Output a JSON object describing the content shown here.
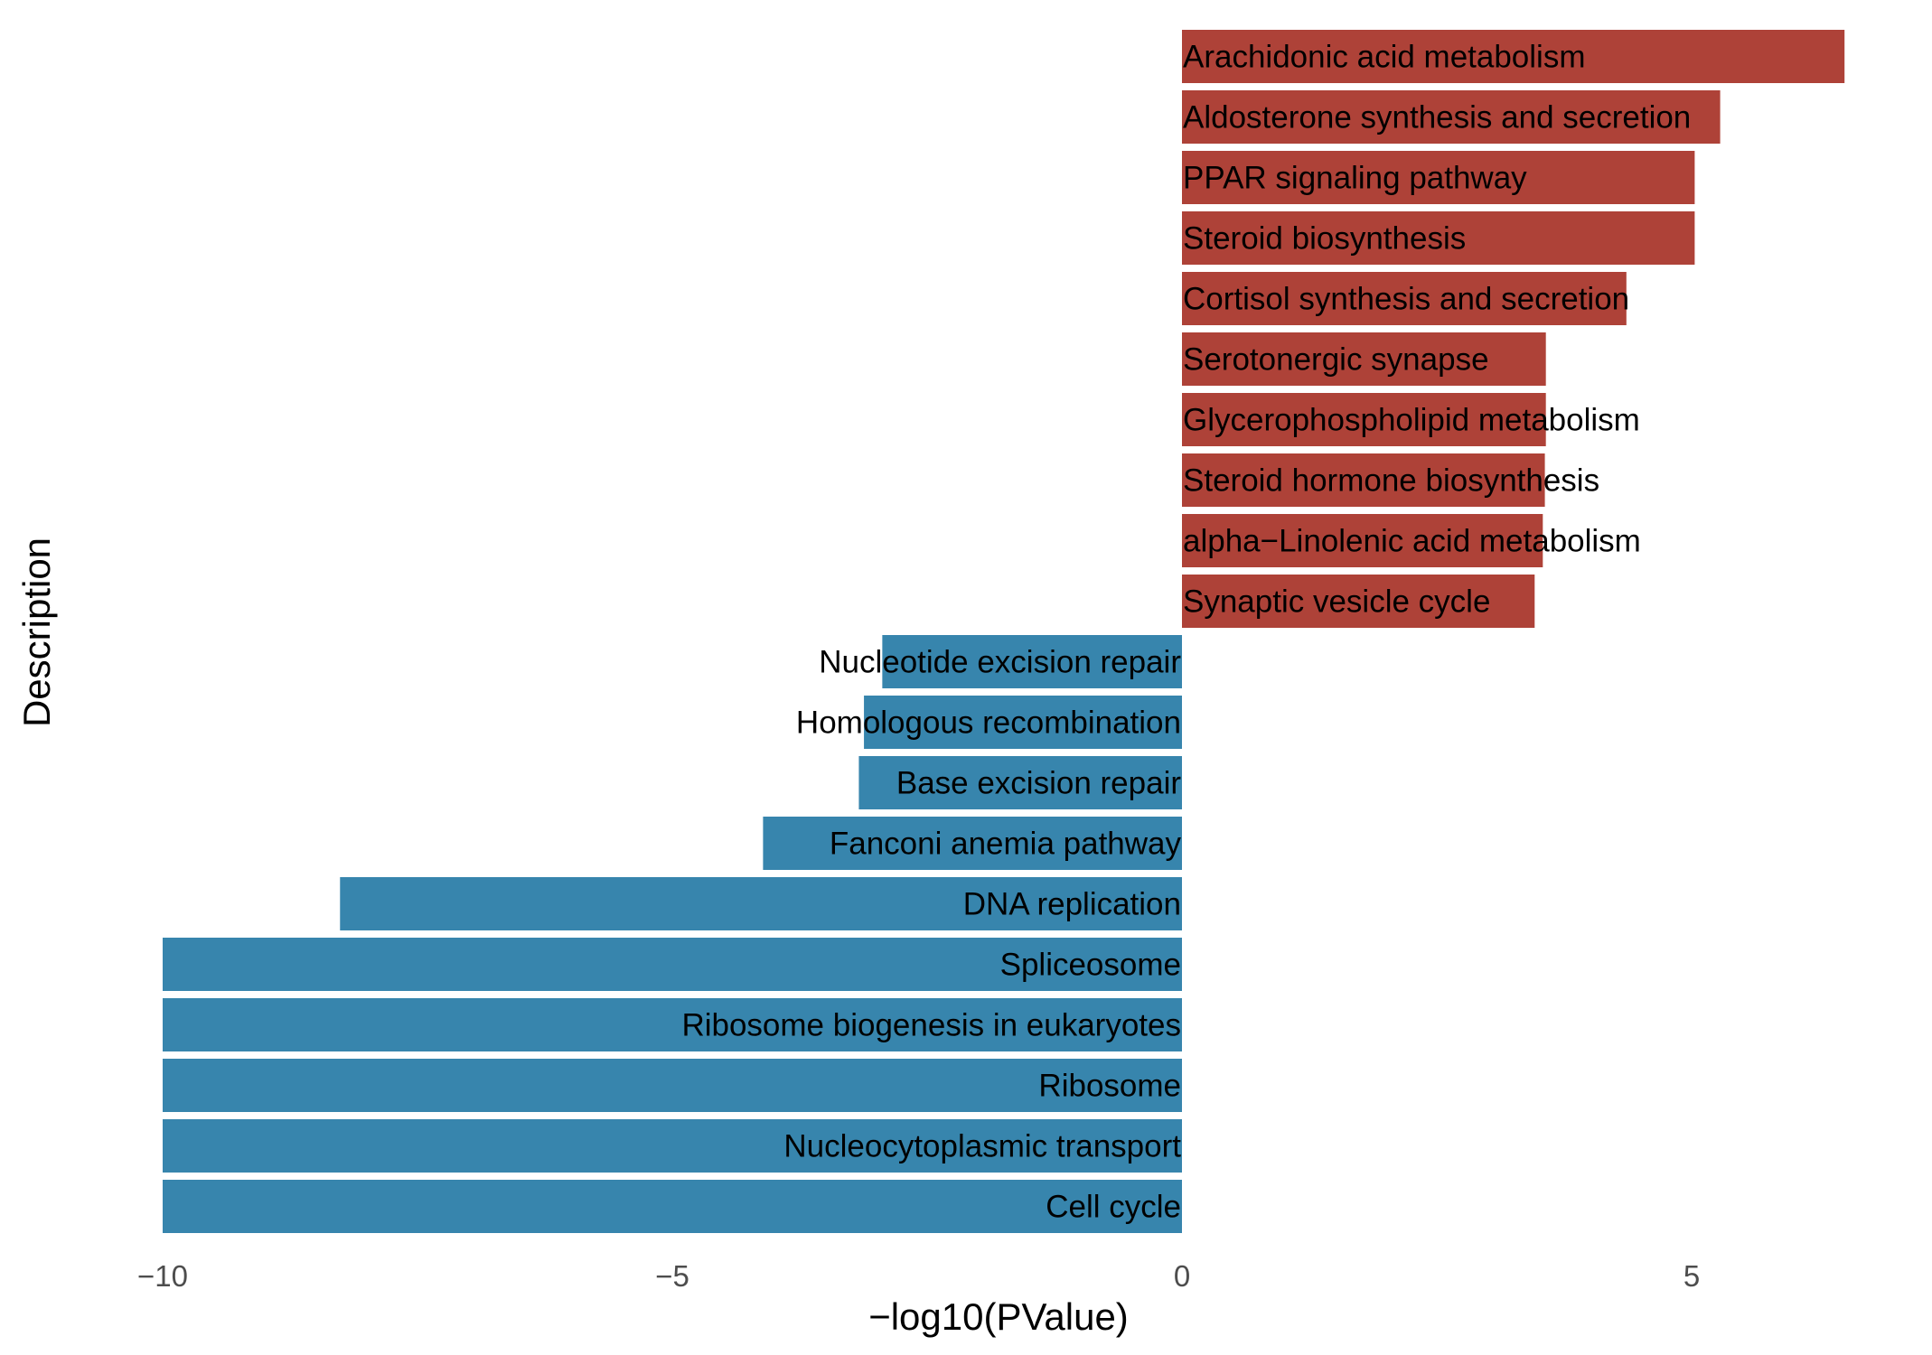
{
  "chart_data": {
    "type": "bar",
    "orientation": "horizontal",
    "title": "",
    "xlabel": "−log10(PValue)",
    "ylabel": "Description",
    "xlim": [
      -10,
      6.5
    ],
    "xticks": [
      -10,
      -5,
      0,
      5
    ],
    "xtick_labels": [
      "−10",
      "−5",
      "0",
      "5"
    ],
    "grid": false,
    "legend": "none",
    "colors": {
      "positive": "#ae4238",
      "negative": "#3785ad"
    },
    "categories": [
      "Arachidonic acid metabolism",
      "Aldosterone synthesis and secretion",
      "PPAR signaling pathway",
      "Steroid biosynthesis",
      "Cortisol synthesis and secretion",
      "Serotonergic synapse",
      "Glycerophospholipid metabolism",
      "Steroid hormone biosynthesis",
      "alpha−Linolenic acid metabolism",
      "Synaptic vesicle cycle",
      "Nucleotide excision repair",
      "Homologous recombination",
      "Base excision repair",
      "Fanconi anemia pathway",
      "DNA replication",
      "Spliceosome",
      "Ribosome biogenesis in eukaryotes",
      "Ribosome",
      "Nucleocytoplasmic transport",
      "Cell cycle"
    ],
    "values": [
      6.5,
      5.28,
      5.03,
      5.03,
      4.36,
      3.57,
      3.57,
      3.56,
      3.54,
      3.46,
      -2.94,
      -3.12,
      -3.17,
      -4.11,
      -8.26,
      -10,
      -10,
      -10,
      -10,
      -10
    ]
  }
}
